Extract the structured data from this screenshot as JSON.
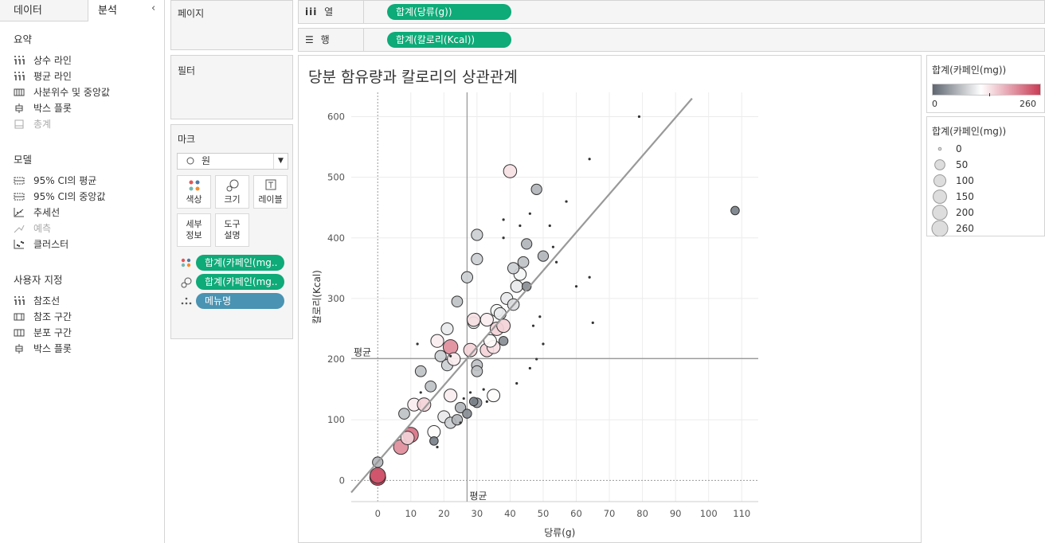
{
  "left_panel": {
    "tabs": [
      "데이터",
      "분석"
    ],
    "collapse_icon": "chevron-left-icon",
    "summary": {
      "title": "요약",
      "items": [
        "상수 라인",
        "평균 라인",
        "사분위수 및 중앙값",
        "박스 플롯",
        "총계"
      ]
    },
    "model": {
      "title": "모델",
      "items": [
        "95% CI의 평균",
        "95% CI의 중앙값",
        "추세선",
        "예측",
        "클러스터"
      ]
    },
    "custom": {
      "title": "사용자 지정",
      "items": [
        "참조선",
        "참조 구간",
        "분포 구간",
        "박스 플롯"
      ]
    }
  },
  "pages": {
    "title": "페이지"
  },
  "filters": {
    "title": "필터"
  },
  "marks": {
    "title": "마크",
    "type": "원",
    "buttons": [
      "색상",
      "크기",
      "레이블"
    ],
    "buttons2": [
      [
        "세부",
        "정보"
      ],
      [
        "도구",
        "설명"
      ]
    ],
    "pills": [
      "합계(카페인(mg..",
      "합계(카페인(mg..",
      "메뉴명"
    ]
  },
  "shelves": {
    "columns": {
      "label": "열",
      "pill": "합계(당류(g))"
    },
    "rows": {
      "label": "행",
      "pill": "합계(칼로리(Kcal))"
    }
  },
  "legend_color": {
    "title": "합계(카페인(mg))",
    "min": "0",
    "max": "260"
  },
  "legend_size": {
    "title": "합계(카페인(mg))",
    "entries": [
      "0",
      "50",
      "100",
      "150",
      "200",
      "260"
    ]
  },
  "chart_data": {
    "type": "scatter",
    "title": "당분 함유량과 칼로리의 상관관계",
    "xlabel": "당류(g)",
    "ylabel": "칼로리(Kcal)",
    "xlim": [
      -8,
      115
    ],
    "ylim": [
      -35,
      640
    ],
    "x_ticks": [
      0,
      10,
      20,
      30,
      40,
      50,
      60,
      70,
      80,
      90,
      100,
      110
    ],
    "y_ticks": [
      0,
      100,
      200,
      300,
      400,
      500,
      600
    ],
    "reference_lines": {
      "x_avg": 27,
      "y_avg": 201,
      "label": "평균"
    },
    "trend_line": {
      "x1": -8,
      "y1": -20,
      "x2": 95,
      "y2": 630
    },
    "color_scale": {
      "low": "#5f6670",
      "mid": "#ffffff",
      "high": "#c93b55",
      "min": 0,
      "max": 260
    },
    "points": [
      [
        0,
        5,
        260
      ],
      [
        0,
        8,
        240
      ],
      [
        0,
        30,
        60
      ],
      [
        7,
        55,
        200
      ],
      [
        10,
        75,
        220
      ],
      [
        9,
        70,
        150
      ],
      [
        8,
        110,
        70
      ],
      [
        11,
        125,
        130
      ],
      [
        14,
        125,
        150
      ],
      [
        16,
        155,
        70
      ],
      [
        13,
        180,
        70
      ],
      [
        17,
        80,
        120
      ],
      [
        17,
        65,
        20
      ],
      [
        20,
        105,
        100
      ],
      [
        22,
        95,
        80
      ],
      [
        24,
        100,
        60
      ],
      [
        25,
        120,
        60
      ],
      [
        27,
        110,
        30
      ],
      [
        30,
        128,
        40
      ],
      [
        29,
        130,
        20
      ],
      [
        22,
        140,
        130
      ],
      [
        35,
        140,
        120
      ],
      [
        19,
        205,
        80
      ],
      [
        21,
        190,
        80
      ],
      [
        22,
        220,
        200
      ],
      [
        23,
        200,
        130
      ],
      [
        18,
        230,
        130
      ],
      [
        21,
        250,
        100
      ],
      [
        24,
        295,
        70
      ],
      [
        27,
        335,
        80
      ],
      [
        29,
        260,
        90
      ],
      [
        28,
        215,
        150
      ],
      [
        30,
        190,
        70
      ],
      [
        30,
        180,
        70
      ],
      [
        29,
        265,
        140
      ],
      [
        33,
        265,
        130
      ],
      [
        36,
        250,
        150
      ],
      [
        38,
        255,
        150
      ],
      [
        33,
        215,
        150
      ],
      [
        35,
        220,
        140
      ],
      [
        34,
        230,
        120
      ],
      [
        36,
        280,
        110
      ],
      [
        37,
        275,
        100
      ],
      [
        39,
        300,
        100
      ],
      [
        41,
        290,
        90
      ],
      [
        42,
        320,
        100
      ],
      [
        43,
        340,
        110
      ],
      [
        41,
        350,
        80
      ],
      [
        44,
        360,
        70
      ],
      [
        30,
        405,
        80
      ],
      [
        30,
        365,
        80
      ],
      [
        40,
        510,
        140
      ],
      [
        48,
        480,
        60
      ],
      [
        45,
        390,
        60
      ],
      [
        50,
        370,
        60
      ],
      [
        45,
        320,
        30
      ],
      [
        48,
        200,
        10
      ],
      [
        46,
        185,
        10
      ],
      [
        38,
        230,
        30
      ],
      [
        108,
        445,
        20
      ],
      [
        79,
        600,
        10
      ],
      [
        64,
        530,
        10
      ],
      [
        57,
        460,
        10
      ],
      [
        53,
        385,
        10
      ],
      [
        60,
        320,
        10
      ],
      [
        65,
        260,
        10
      ],
      [
        49,
        270,
        10
      ],
      [
        50,
        225,
        10
      ],
      [
        47,
        255,
        10
      ],
      [
        38,
        430,
        10
      ],
      [
        38,
        400,
        10
      ],
      [
        43,
        420,
        10
      ],
      [
        46,
        440,
        10
      ],
      [
        52,
        420,
        10
      ],
      [
        54,
        360,
        10
      ],
      [
        64,
        335,
        10
      ],
      [
        12,
        225,
        10
      ],
      [
        26,
        135,
        10
      ],
      [
        28,
        145,
        10
      ],
      [
        32,
        150,
        10
      ],
      [
        22,
        205,
        10
      ],
      [
        25,
        95,
        10
      ],
      [
        18,
        55,
        10
      ],
      [
        13,
        145,
        10
      ],
      [
        42,
        160,
        10
      ],
      [
        33,
        130,
        10
      ]
    ]
  }
}
